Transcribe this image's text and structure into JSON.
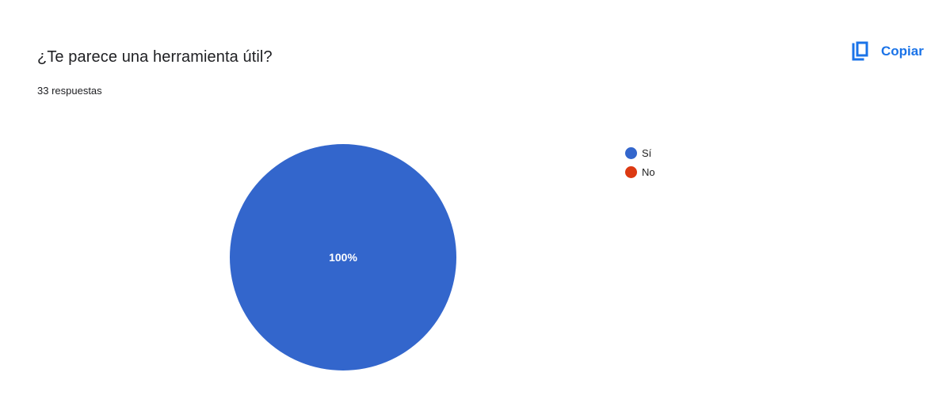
{
  "question": {
    "title": "¿Te parece una herramienta útil?",
    "responses": "33 respuestas"
  },
  "toolbar": {
    "copy_label": "Copiar",
    "copy_icon": "copy-icon"
  },
  "colors": {
    "accent": "#1a73e8",
    "text": "#202124"
  },
  "chart_data": {
    "type": "pie",
    "categories": [
      "Sí",
      "No"
    ],
    "values": [
      100,
      0
    ],
    "slice_labels": [
      "100%",
      ""
    ],
    "colors": [
      "#3366cc",
      "#dc3912"
    ],
    "legend_position": "right"
  }
}
